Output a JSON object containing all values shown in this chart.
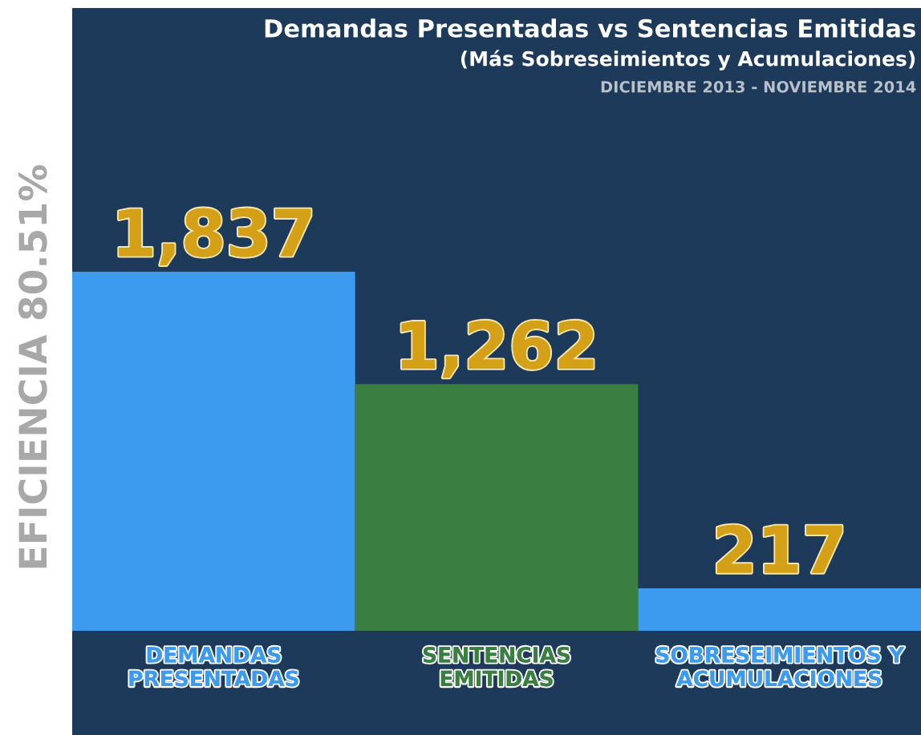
{
  "chart_data": {
    "type": "bar",
    "title": "Demandas Presentadas vs Sentencias Emitidas",
    "subtitle": "(Más Sobreseimientos y Acumulaciones)",
    "annotations": [
      "DICIEMBRE 2013 - NOVIEMBRE 2014",
      "EFICIENCIA 80.51%"
    ],
    "categories": [
      "DEMANDAS\nPRESENTADAS",
      "SENTENCIAS\nEMITIDAS",
      "SOBRESEIMIENTOS Y\nACUMULACIONES"
    ],
    "values": [
      1837,
      1262,
      217
    ],
    "colors": [
      "#3d9bef",
      "#3a7f41",
      "#3d9bef"
    ],
    "value_labels": [
      "1,837",
      "1,262",
      "217"
    ],
    "grid": false,
    "legend": false
  }
}
